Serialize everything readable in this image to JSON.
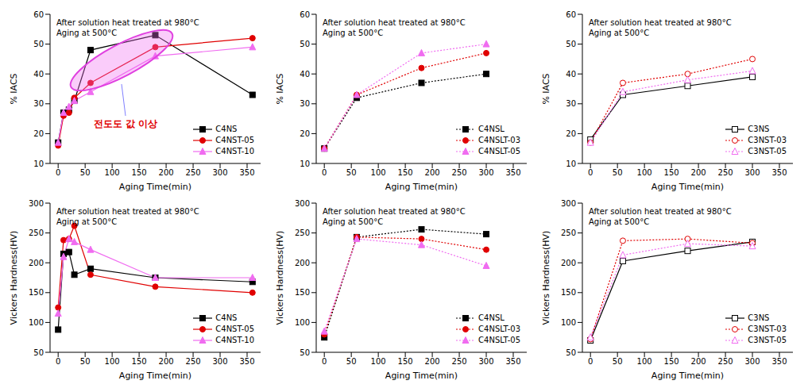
{
  "chart_data": [
    {
      "type": "line",
      "annotations": [
        "After solution heat treated at 980°C",
        "Aging at 500°C",
        "전도도 값 이상"
      ],
      "x_label": "Aging Time(min)",
      "y_label": "% IACS",
      "x": [
        0,
        10,
        20,
        30,
        60,
        180,
        360
      ],
      "xlim": [
        -15,
        375
      ],
      "xticks": [
        0,
        50,
        100,
        150,
        200,
        250,
        300,
        350
      ],
      "ylim": [
        10,
        60
      ],
      "yticks": [
        10,
        20,
        30,
        40,
        50,
        60
      ],
      "legend": "lower right",
      "series": [
        {
          "name": "C4NS",
          "color": "#000000",
          "marker": "square",
          "line_style": "solid",
          "values": [
            17,
            27,
            28,
            31,
            48,
            53,
            33
          ]
        },
        {
          "name": "C4NST-05",
          "color": "#e00000",
          "marker": "circle",
          "line_style": "solid",
          "values": [
            16,
            26,
            27,
            32,
            37,
            49,
            52
          ]
        },
        {
          "name": "C4NST-10",
          "color": "#f06cf0",
          "marker": "triangle",
          "line_style": "solid",
          "values": [
            17,
            27,
            29,
            31,
            34,
            46,
            49
          ]
        }
      ]
    },
    {
      "type": "line",
      "annotations": [
        "After solution heat treated at 980°C",
        "Aging at 500°C"
      ],
      "x_label": "Aging Time(min)",
      "y_label": "% IACS",
      "x": [
        0,
        60,
        180,
        300
      ],
      "xlim": [
        -15,
        375
      ],
      "xticks": [
        0,
        50,
        100,
        150,
        200,
        250,
        300,
        350
      ],
      "ylim": [
        10,
        60
      ],
      "yticks": [
        10,
        20,
        30,
        40,
        50,
        60
      ],
      "legend": "lower right",
      "series": [
        {
          "name": "C4NSL",
          "color": "#000000",
          "marker": "square",
          "line_style": "dotted",
          "values": [
            15,
            32,
            37,
            40
          ]
        },
        {
          "name": "C4NSLT-03",
          "color": "#e00000",
          "marker": "circle",
          "line_style": "dotted",
          "values": [
            15,
            33,
            42,
            47
          ]
        },
        {
          "name": "C4NSLT-05",
          "color": "#f06cf0",
          "marker": "triangle",
          "line_style": "dotted",
          "values": [
            15,
            33,
            47,
            50
          ]
        }
      ]
    },
    {
      "type": "line",
      "annotations": [
        "After solution heat treated at 980°C",
        "Aging at 500°C"
      ],
      "x_label": "Aging Time(min)",
      "y_label": "% IACS",
      "x": [
        0,
        60,
        180,
        300
      ],
      "xlim": [
        -15,
        375
      ],
      "xticks": [
        0,
        50,
        100,
        150,
        200,
        250,
        300,
        350
      ],
      "ylim": [
        10,
        60
      ],
      "yticks": [
        10,
        20,
        30,
        40,
        50,
        60
      ],
      "legend": "lower right",
      "series": [
        {
          "name": "C3NS",
          "color": "#000000",
          "marker": "square-open",
          "line_style": "solid",
          "values": [
            18,
            33,
            36,
            39
          ]
        },
        {
          "name": "C3NST-03",
          "color": "#e00000",
          "marker": "circle-open",
          "line_style": "dotted",
          "values": [
            17,
            37,
            40,
            45
          ]
        },
        {
          "name": "C3NST-05",
          "color": "#f06cf0",
          "marker": "triangle-open",
          "line_style": "dotted",
          "values": [
            17,
            34,
            38,
            41
          ]
        }
      ]
    },
    {
      "type": "line",
      "annotations": [
        "After solution heat treated at 980°C",
        "Aging at 500°C"
      ],
      "x_label": "Aging Time(min)",
      "y_label": "Vickers Hardness(HV)",
      "x": [
        0,
        10,
        20,
        30,
        60,
        180,
        360
      ],
      "xlim": [
        -15,
        375
      ],
      "xticks": [
        0,
        50,
        100,
        150,
        200,
        250,
        300,
        350
      ],
      "ylim": [
        50,
        300
      ],
      "yticks": [
        50,
        100,
        150,
        200,
        250,
        300
      ],
      "legend": "lower right",
      "series": [
        {
          "name": "C4NS",
          "color": "#000000",
          "marker": "square",
          "line_style": "solid",
          "values": [
            88,
            215,
            218,
            180,
            190,
            175,
            168
          ]
        },
        {
          "name": "C4NST-05",
          "color": "#e00000",
          "marker": "circle",
          "line_style": "solid",
          "values": [
            125,
            238,
            240,
            262,
            180,
            160,
            150
          ]
        },
        {
          "name": "C4NST-10",
          "color": "#f06cf0",
          "marker": "triangle",
          "line_style": "solid",
          "values": [
            115,
            210,
            240,
            235,
            222,
            175,
            175
          ]
        }
      ]
    },
    {
      "type": "line",
      "annotations": [
        "After solution heat treated at 980°C",
        "Aging at 500°C"
      ],
      "x_label": "Aging Time(min)",
      "y_label": "Vickers Hardness(HV)",
      "x": [
        0,
        60,
        180,
        300
      ],
      "xlim": [
        -15,
        375
      ],
      "xticks": [
        0,
        50,
        100,
        150,
        200,
        250,
        300,
        350
      ],
      "ylim": [
        50,
        300
      ],
      "yticks": [
        50,
        100,
        150,
        200,
        250,
        300
      ],
      "legend": "lower right",
      "series": [
        {
          "name": "C4NSL",
          "color": "#000000",
          "marker": "square",
          "line_style": "dotted",
          "values": [
            75,
            243,
            256,
            248
          ]
        },
        {
          "name": "C4NSLT-03",
          "color": "#e00000",
          "marker": "circle",
          "line_style": "dotted",
          "values": [
            80,
            243,
            240,
            222
          ]
        },
        {
          "name": "C4NSLT-05",
          "color": "#f06cf0",
          "marker": "triangle",
          "line_style": "dotted",
          "values": [
            85,
            240,
            230,
            195
          ]
        }
      ]
    },
    {
      "type": "line",
      "annotations": [
        "After solution heat treated at 980°C",
        "Aging at 500°C"
      ],
      "x_label": "Aging Time(min)",
      "y_label": "Vickers Hardness(HV)",
      "x": [
        0,
        60,
        180,
        300
      ],
      "xlim": [
        -15,
        375
      ],
      "xticks": [
        0,
        50,
        100,
        150,
        200,
        250,
        300,
        350
      ],
      "ylim": [
        50,
        300
      ],
      "yticks": [
        50,
        100,
        150,
        200,
        250,
        300
      ],
      "legend": "lower right",
      "series": [
        {
          "name": "C3NS",
          "color": "#000000",
          "marker": "square-open",
          "line_style": "solid",
          "values": [
            70,
            203,
            220,
            235
          ]
        },
        {
          "name": "C3NST-03",
          "color": "#e00000",
          "marker": "circle-open",
          "line_style": "dotted",
          "values": [
            72,
            237,
            240,
            233
          ]
        },
        {
          "name": "C3NST-05",
          "color": "#f06cf0",
          "marker": "triangle-open",
          "line_style": "dotted",
          "values": [
            75,
            213,
            232,
            228
          ]
        }
      ]
    }
  ]
}
